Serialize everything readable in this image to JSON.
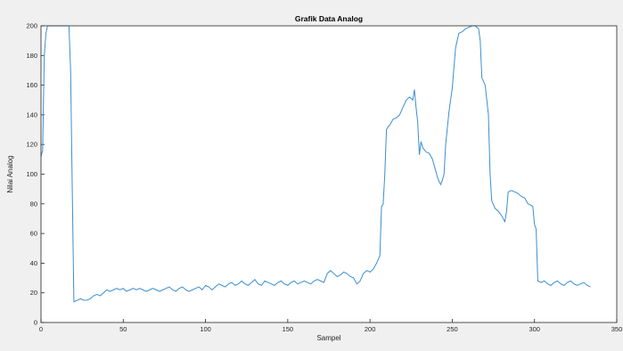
{
  "chart_data": {
    "type": "line",
    "title": "Grafik Data Analog",
    "xlabel": "Sampel",
    "ylabel": "Nilai Analog",
    "xlim": [
      0,
      350
    ],
    "ylim": [
      0,
      200
    ],
    "xticks": [
      0,
      50,
      100,
      150,
      200,
      250,
      300,
      350
    ],
    "yticks": [
      0,
      20,
      40,
      60,
      80,
      100,
      120,
      140,
      160,
      180,
      200
    ],
    "xtick_labels": [
      "0",
      "50",
      "100",
      "150",
      "200",
      "250",
      "300",
      "350"
    ],
    "ytick_labels": [
      "0",
      "20",
      "40",
      "60",
      "80",
      "100",
      "120",
      "140",
      "160",
      "180",
      "200"
    ],
    "grid": false,
    "line_color": "#3a8fd0",
    "series": [
      {
        "x": [
          0,
          1,
          2,
          3,
          4,
          17,
          18,
          19,
          20,
          22,
          24,
          26,
          28,
          30,
          32,
          34,
          36,
          38,
          40,
          42,
          44,
          46,
          48,
          50,
          52,
          54,
          56,
          58,
          60,
          62,
          64,
          66,
          68,
          70,
          72,
          74,
          76,
          78,
          80,
          82,
          84,
          86,
          88,
          90,
          92,
          94,
          96,
          98,
          100,
          102,
          104,
          106,
          108,
          110,
          112,
          114,
          116,
          118,
          120,
          122,
          124,
          126,
          128,
          130,
          132,
          134,
          136,
          138,
          140,
          142,
          144,
          146,
          148,
          150,
          152,
          154,
          156,
          158,
          160,
          162,
          164,
          166,
          168,
          170,
          172,
          174,
          176,
          178,
          180,
          182,
          184,
          186,
          188,
          190,
          192,
          194,
          196,
          198,
          200,
          202,
          204,
          206,
          207,
          208,
          209,
          210,
          211,
          212,
          214,
          216,
          218,
          220,
          222,
          224,
          226,
          227,
          228,
          229,
          230,
          231,
          232,
          234,
          236,
          238,
          240,
          241,
          242,
          243,
          244,
          245,
          246,
          248,
          250,
          252,
          254,
          256,
          257,
          258,
          260,
          262,
          264,
          266,
          267,
          268,
          270,
          272,
          273,
          274,
          276,
          278,
          280,
          281,
          282,
          283,
          284,
          286,
          288,
          290,
          291,
          292,
          294,
          296,
          298,
          299,
          300,
          301,
          302,
          304,
          306,
          308,
          310,
          312,
          314,
          316,
          318,
          320,
          322,
          324,
          326,
          328,
          330,
          332,
          334
        ],
        "y": [
          112,
          116,
          180,
          195,
          200,
          200,
          170,
          90,
          14,
          15,
          16,
          15,
          15,
          16,
          18,
          19,
          18,
          20,
          22,
          21,
          22,
          23,
          22,
          23,
          21,
          22,
          23,
          22,
          23,
          22,
          21,
          22,
          23,
          22,
          21,
          22,
          23,
          24,
          22,
          21,
          23,
          24,
          22,
          21,
          22,
          23,
          24,
          22,
          25,
          24,
          22,
          24,
          26,
          25,
          24,
          26,
          27,
          25,
          26,
          28,
          26,
          25,
          27,
          29,
          26,
          25,
          28,
          27,
          26,
          25,
          27,
          28,
          26,
          25,
          27,
          28,
          26,
          27,
          28,
          27,
          26,
          28,
          29,
          28,
          27,
          33,
          35,
          33,
          31,
          32,
          34,
          33,
          31,
          30,
          26,
          28,
          33,
          35,
          34,
          36,
          40,
          45,
          78,
          80,
          100,
          130,
          132,
          133,
          137,
          138,
          140,
          145,
          150,
          152,
          150,
          157,
          145,
          135,
          113,
          122,
          118,
          115,
          114,
          110,
          102,
          98,
          95,
          93,
          96,
          100,
          120,
          142,
          158,
          185,
          195,
          196,
          197,
          198,
          199,
          200,
          200,
          198,
          190,
          165,
          160,
          140,
          100,
          82,
          77,
          75,
          72,
          70,
          68,
          75,
          88,
          89,
          88,
          87,
          86,
          85,
          84,
          80,
          79,
          78,
          66,
          63,
          28,
          27,
          28,
          26,
          25,
          27,
          28,
          26,
          25,
          27,
          28,
          26,
          25,
          26,
          27,
          25,
          24
        ]
      }
    ]
  }
}
